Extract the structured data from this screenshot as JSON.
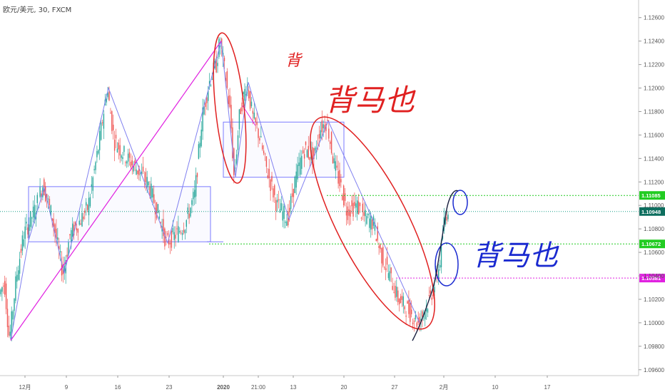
{
  "chart_data": {
    "type": "candlestick",
    "title": "欧元/美元, 30, FXCM",
    "y_range": [
      1.0955,
      1.1275
    ],
    "y_ticks": [
      "1.12600",
      "1.12400",
      "1.12200",
      "1.12000",
      "1.11800",
      "1.11600",
      "1.11400",
      "1.11200",
      "1.11000",
      "1.10800",
      "1.10600",
      "1.10400",
      "1.10200",
      "1.10000",
      "1.09800",
      "1.09600"
    ],
    "x_labels": [
      "12月",
      "9",
      "16",
      "23",
      "2020",
      "21:00",
      "13",
      "20",
      "27",
      "2月",
      "10",
      "17"
    ],
    "price_badges": [
      {
        "label": "1.11085",
        "value": 1.11085,
        "color": "#22cc22",
        "filled": true
      },
      {
        "label": "1.10948",
        "value": 1.10948,
        "color": "#0d6e5e",
        "filled": true
      },
      {
        "label": "1.10672",
        "value": 1.10672,
        "color": "#22cc22",
        "filled": true
      },
      {
        "label": "1.10381",
        "value": 1.10381,
        "color": "#e020e0",
        "filled": true
      }
    ],
    "price_path": [
      [
        0,
        1.1023
      ],
      [
        8,
        1.1035
      ],
      [
        15,
        1.0985
      ],
      [
        25,
        1.104
      ],
      [
        35,
        1.1075
      ],
      [
        50,
        1.1095
      ],
      [
        62,
        1.1118
      ],
      [
        75,
        1.109
      ],
      [
        90,
        1.1042
      ],
      [
        100,
        1.1075
      ],
      [
        112,
        1.1085
      ],
      [
        125,
        1.1098
      ],
      [
        140,
        1.115
      ],
      [
        152,
        1.12
      ],
      [
        162,
        1.1155
      ],
      [
        180,
        1.114
      ],
      [
        195,
        1.113
      ],
      [
        210,
        1.1118
      ],
      [
        225,
        1.109
      ],
      [
        235,
        1.1068
      ],
      [
        248,
        1.1075
      ],
      [
        262,
        1.1085
      ],
      [
        275,
        1.111
      ],
      [
        285,
        1.1175
      ],
      [
        295,
        1.1205
      ],
      [
        305,
        1.122
      ],
      [
        310,
        1.124
      ],
      [
        318,
        1.121
      ],
      [
        325,
        1.1175
      ],
      [
        330,
        1.1122
      ],
      [
        338,
        1.118
      ],
      [
        348,
        1.1205
      ],
      [
        356,
        1.1175
      ],
      [
        365,
        1.116
      ],
      [
        375,
        1.1132
      ],
      [
        390,
        1.11
      ],
      [
        405,
        1.1088
      ],
      [
        415,
        1.112
      ],
      [
        428,
        1.1148
      ],
      [
        442,
        1.114
      ],
      [
        450,
        1.1165
      ],
      [
        460,
        1.1172
      ],
      [
        470,
        1.1135
      ],
      [
        480,
        1.1115
      ],
      [
        488,
        1.1095
      ],
      [
        502,
        1.11
      ],
      [
        512,
        1.109
      ],
      [
        525,
        1.1085
      ],
      [
        535,
        1.106
      ],
      [
        548,
        1.104
      ],
      [
        560,
        1.102
      ],
      [
        575,
        1.101
      ],
      [
        588,
        1.1
      ],
      [
        600,
        1.1015
      ],
      [
        610,
        1.103
      ],
      [
        618,
        1.105
      ],
      [
        624,
        1.1085
      ],
      [
        630,
        1.1098
      ]
    ],
    "annotations": {
      "handwriting_top": "背马也",
      "handwriting_top_prefix": "背",
      "handwriting_right": "背马也"
    }
  }
}
